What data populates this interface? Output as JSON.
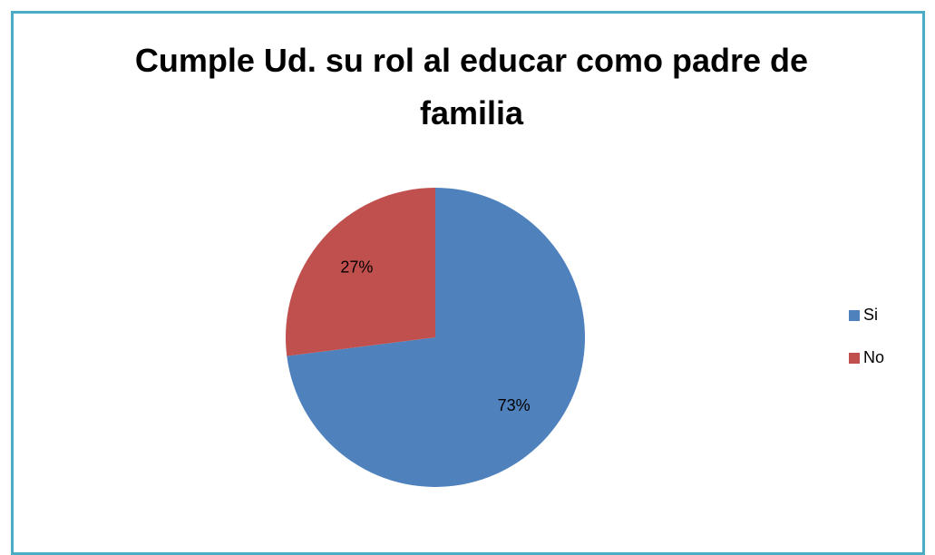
{
  "chart_data": {
    "type": "pie",
    "title": "Cumple Ud. su rol al educar como padre de familia",
    "categories": [
      "Si",
      "No"
    ],
    "values": [
      73,
      27
    ],
    "value_labels": [
      "73%",
      "27%"
    ],
    "colors": [
      "#4f81bd",
      "#c0504d"
    ],
    "legend": "right"
  }
}
